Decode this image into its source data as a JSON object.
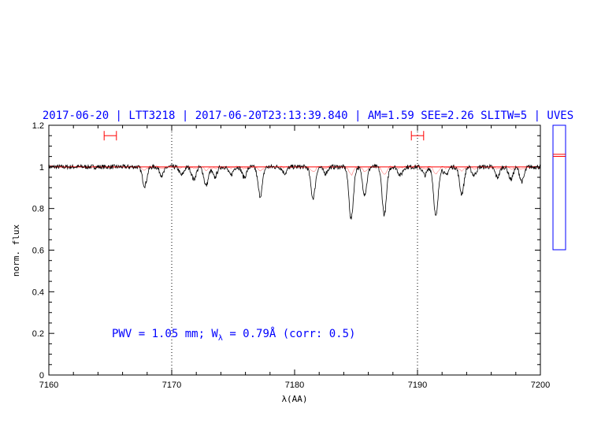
{
  "chart_data": {
    "type": "line",
    "title": "2017-06-20 | LTT3218 | 2017-06-20T23:13:39.840 | AM=1.59 SEE=2.26 SLITW=5 | UVES",
    "xlabel": "λ(AA)",
    "ylabel": "norm. flux",
    "xlim": [
      7160,
      7200
    ],
    "ylim": [
      0,
      1.2
    ],
    "x_ticks": [
      "7160",
      "7170",
      "7180",
      "7190",
      "7200"
    ],
    "y_ticks": [
      "0",
      "0.2",
      "0.4",
      "0.6",
      "0.8",
      "1",
      "1.2"
    ],
    "vertical_dotted_lines": [
      7170,
      7190
    ],
    "continuum_level": 1.0,
    "fit_windows": [
      {
        "x_start": 7164.5,
        "x_end": 7165.5,
        "y": 1.15
      },
      {
        "x_start": 7189.5,
        "x_end": 7190.5,
        "y": 1.15
      }
    ],
    "annotation": {
      "prefix": "PWV = 1.05 mm; W",
      "subscript": "λ",
      "suffix": " = 0.79Å (corr: 0.5)"
    },
    "absorption_lines": [
      {
        "x": 7167.8,
        "depth": 0.09
      },
      {
        "x": 7169.2,
        "depth": 0.04
      },
      {
        "x": 7170.8,
        "depth": 0.04
      },
      {
        "x": 7171.8,
        "depth": 0.06
      },
      {
        "x": 7172.8,
        "depth": 0.09
      },
      {
        "x": 7173.5,
        "depth": 0.05
      },
      {
        "x": 7174.8,
        "depth": 0.04
      },
      {
        "x": 7175.9,
        "depth": 0.05
      },
      {
        "x": 7177.2,
        "depth": 0.14
      },
      {
        "x": 7179.2,
        "depth": 0.03
      },
      {
        "x": 7181.5,
        "depth": 0.15
      },
      {
        "x": 7182.5,
        "depth": 0.03
      },
      {
        "x": 7184.6,
        "depth": 0.25
      },
      {
        "x": 7185.7,
        "depth": 0.13
      },
      {
        "x": 7187.3,
        "depth": 0.23
      },
      {
        "x": 7188.6,
        "depth": 0.04
      },
      {
        "x": 7190.6,
        "depth": 0.04
      },
      {
        "x": 7191.5,
        "depth": 0.24
      },
      {
        "x": 7192.3,
        "depth": 0.04
      },
      {
        "x": 7193.6,
        "depth": 0.13
      },
      {
        "x": 7194.6,
        "depth": 0.04
      },
      {
        "x": 7196.5,
        "depth": 0.05
      },
      {
        "x": 7197.6,
        "depth": 0.06
      },
      {
        "x": 7198.5,
        "depth": 0.07
      }
    ],
    "side_panel": {
      "ylim": [
        0.6,
        1.2
      ],
      "markers": [
        1.05,
        1.06
      ]
    },
    "colors": {
      "spectrum": "#000000",
      "fit": "#ff0000",
      "annotation": "#0000ff",
      "side_panel_frame": "#0000ff"
    }
  }
}
